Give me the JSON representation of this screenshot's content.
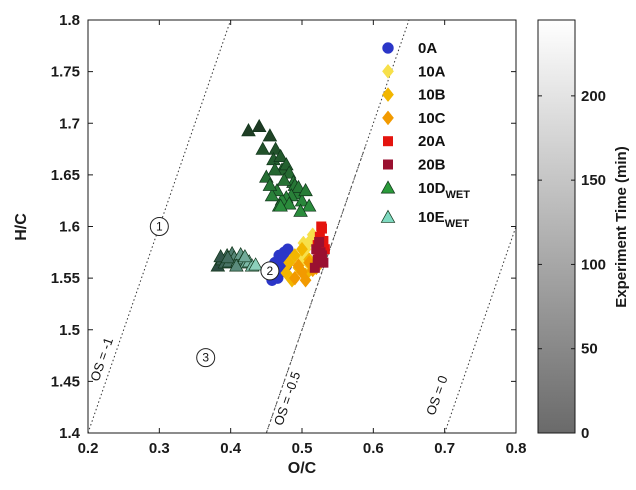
{
  "chart_data": {
    "type": "scatter",
    "xlabel": "O/C",
    "ylabel": "H/C",
    "xlim": [
      0.2,
      0.8
    ],
    "ylim": [
      1.4,
      1.8
    ],
    "xticks": [
      "0.2",
      "0.3",
      "0.4",
      "0.5",
      "0.6",
      "0.7",
      "0.8"
    ],
    "yticks": [
      "1.4",
      "1.45",
      "1.5",
      "1.55",
      "1.6",
      "1.65",
      "1.7",
      "1.75",
      "1.8"
    ],
    "grid": false,
    "legend_position": "top-right",
    "series": [
      {
        "name": "0A",
        "marker": "circle",
        "color": "#2b36c8",
        "x": [
          0.455,
          0.46,
          0.462,
          0.465,
          0.468,
          0.47,
          0.472,
          0.475,
          0.478,
          0.48,
          0.458,
          0.466,
          0.474
        ],
        "y": [
          1.553,
          1.558,
          1.565,
          1.56,
          1.572,
          1.556,
          1.568,
          1.575,
          1.562,
          1.578,
          1.548,
          1.55,
          1.57
        ]
      },
      {
        "name": "10A",
        "marker": "diamond",
        "color": "#f7e04a",
        "x": [
          0.5,
          0.505,
          0.51,
          0.508,
          0.515,
          0.502
        ],
        "y": [
          1.57,
          1.578,
          1.585,
          1.565,
          1.592,
          1.584
        ]
      },
      {
        "name": "10B",
        "marker": "diamond",
        "color": "#f2b600",
        "x": [
          0.478,
          0.482,
          0.486,
          0.49,
          0.495,
          0.5,
          0.505,
          0.51
        ],
        "y": [
          1.555,
          1.565,
          1.548,
          1.572,
          1.56,
          1.578,
          1.553,
          1.568
        ]
      },
      {
        "name": "10C",
        "marker": "diamond",
        "color": "#f29a00",
        "x": [
          0.49,
          0.495,
          0.5,
          0.505,
          0.51,
          0.515,
          0.52
        ],
        "y": [
          1.55,
          1.562,
          1.556,
          1.548,
          1.565,
          1.558,
          1.56
        ]
      },
      {
        "name": "20A",
        "marker": "square",
        "color": "#e4140e",
        "x": [
          0.522,
          0.525,
          0.528,
          0.53,
          0.532,
          0.527,
          0.524
        ],
        "y": [
          1.582,
          1.59,
          1.598,
          1.586,
          1.578,
          1.6,
          1.575
        ]
      },
      {
        "name": "20B",
        "marker": "square",
        "color": "#9a1030",
        "x": [
          0.518,
          0.522,
          0.526,
          0.53,
          0.52,
          0.528,
          0.524
        ],
        "y": [
          1.56,
          1.568,
          1.575,
          1.565,
          1.578,
          1.572,
          1.585
        ]
      },
      {
        "name": "10D",
        "name_subscript": "WET",
        "marker": "triangle",
        "color": "#2a9a3a",
        "x": [
          0.425,
          0.44,
          0.455,
          0.463,
          0.46,
          0.47,
          0.472,
          0.478,
          0.482,
          0.488,
          0.49,
          0.492,
          0.495,
          0.485,
          0.478,
          0.472,
          0.465,
          0.458,
          0.475,
          0.5,
          0.505,
          0.51,
          0.482,
          0.468,
          0.45,
          0.445,
          0.498,
          0.462,
          0.455,
          0.47
        ],
        "y": [
          1.693,
          1.697,
          1.688,
          1.675,
          1.665,
          1.668,
          1.655,
          1.66,
          1.652,
          1.643,
          1.64,
          1.632,
          1.638,
          1.63,
          1.628,
          1.626,
          1.635,
          1.63,
          1.645,
          1.625,
          1.635,
          1.62,
          1.622,
          1.62,
          1.648,
          1.675,
          1.615,
          1.655,
          1.64,
          1.62
        ]
      },
      {
        "name": "10E",
        "name_subscript": "WET",
        "marker": "triangle",
        "color": "#7ed9c0",
        "x": [
          0.382,
          0.388,
          0.392,
          0.395,
          0.398,
          0.402,
          0.405,
          0.41,
          0.414,
          0.418,
          0.422,
          0.426,
          0.43,
          0.435,
          0.386,
          0.396,
          0.408,
          0.42
        ],
        "y": [
          1.562,
          1.568,
          1.565,
          1.572,
          1.566,
          1.574,
          1.57,
          1.567,
          1.573,
          1.569,
          1.565,
          1.566,
          1.562,
          1.563,
          1.571,
          1.57,
          1.562,
          1.571
        ]
      }
    ],
    "os_lines": [
      {
        "label": "OS = -1",
        "x1": 0.2,
        "y1": 1.4,
        "x2": 0.4,
        "y2": 1.8
      },
      {
        "label": "OS = -0.5",
        "x1": 0.45,
        "y1": 1.4,
        "x2": 0.65,
        "y2": 1.8
      },
      {
        "label": "OS = 0",
        "x1": 0.7,
        "y1": 1.4,
        "x2": 0.8,
        "y2": 1.6
      }
    ],
    "os_dashed_segment": {
      "x1": 0.45,
      "y1": 1.4,
      "x2": 0.59,
      "y2": 1.68
    },
    "regions": [
      {
        "label": "1",
        "x": 0.3,
        "y": 1.6
      },
      {
        "label": "2",
        "x": 0.455,
        "y": 1.557
      },
      {
        "label": "3",
        "x": 0.365,
        "y": 1.473
      }
    ],
    "colorbar": {
      "label": "Experiment Time (min)",
      "range": [
        0,
        245
      ],
      "ticks": [
        "0",
        "50",
        "100",
        "150",
        "200"
      ],
      "tick_values": [
        0,
        50,
        100,
        150,
        200
      ],
      "color_low": "#6a6a6a",
      "color_high": "#ffffff"
    }
  }
}
